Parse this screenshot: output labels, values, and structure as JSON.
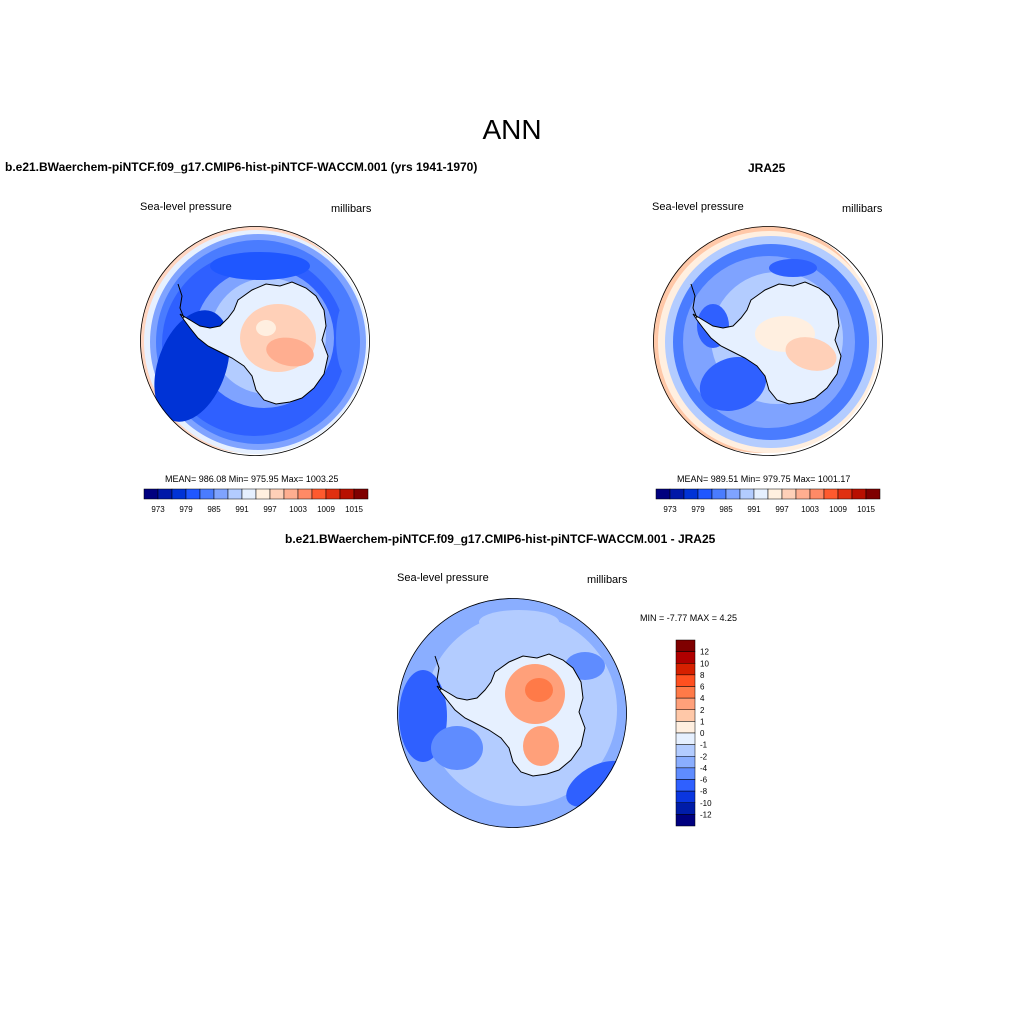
{
  "title": "ANN",
  "panels": [
    {
      "id": "model",
      "title": "b.e21.BWaerchem-piNTCF.f09_g17.CMIP6-hist-piNTCF-WACCM.001 (yrs 1941-1970)",
      "left_label": "Sea-level pressure",
      "right_label": "millibars",
      "stats": "MEAN= 986.08   Min= 975.95   Max= 1003.25"
    },
    {
      "id": "obs",
      "title": "JRA25",
      "left_label": "Sea-level pressure",
      "right_label": "millibars",
      "stats": "MEAN= 989.51   Min= 979.75   Max= 1001.17"
    },
    {
      "id": "diff",
      "title": "b.e21.BWaerchem-piNTCF.f09_g17.CMIP6-hist-piNTCF-WACCM.001 - JRA25",
      "left_label": "Sea-level pressure",
      "right_label": "millibars",
      "stats": "MIN =  -7.77 MAX =   4.25"
    }
  ],
  "colorbar_abs": {
    "colors": [
      "#00007f",
      "#0018a8",
      "#0033d6",
      "#1f57ff",
      "#4a7cff",
      "#7fa3ff",
      "#b3ccff",
      "#e6f0ff",
      "#fff0e0",
      "#ffd0b8",
      "#ffae90",
      "#ff8a66",
      "#ff5a2e",
      "#e03010",
      "#b81000",
      "#7f0000"
    ],
    "labels": [
      "973",
      "979",
      "985",
      "991",
      "997",
      "1003",
      "1009",
      "1015"
    ]
  },
  "colorbar_diff": {
    "colors": [
      "#7f0000",
      "#b00000",
      "#d62000",
      "#ff5020",
      "#ff7a48",
      "#ffa07a",
      "#ffc8a8",
      "#ffefe0",
      "#e6f0ff",
      "#b3ccff",
      "#8aaeff",
      "#5f8cff",
      "#2f60ff",
      "#0a36e0",
      "#001ca8",
      "#00007f"
    ],
    "labels": [
      "12",
      "10",
      "8",
      "6",
      "4",
      "2",
      "1",
      "0",
      "-1",
      "-2",
      "-4",
      "-6",
      "-8",
      "-10",
      "-12"
    ]
  }
}
